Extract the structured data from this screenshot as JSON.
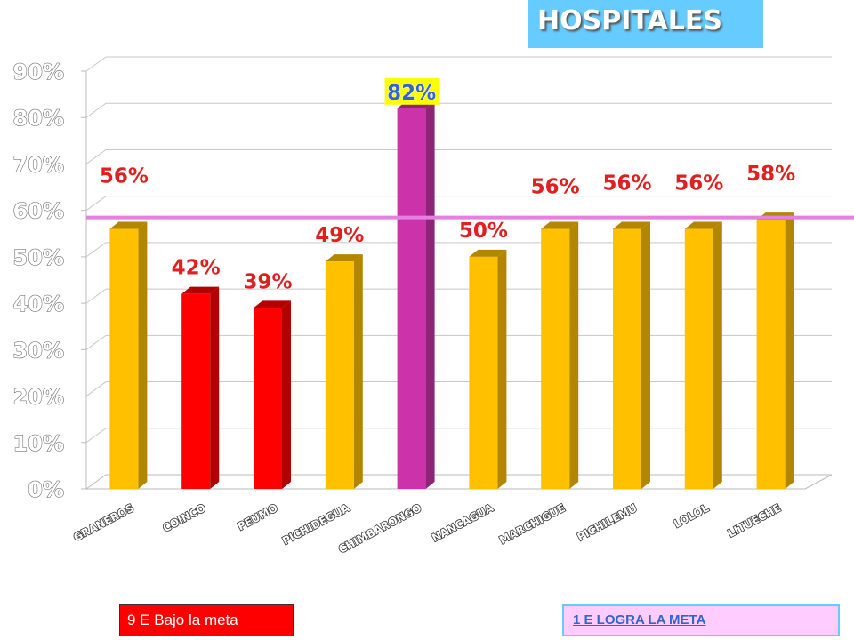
{
  "title": "HOSPITALES",
  "legend": {
    "below": "9 E Bajo la meta",
    "meets": "1 E  LOGRA LA META"
  },
  "colors": {
    "below_goal": "#ff0000",
    "near_goal": "#ffc000",
    "meets_goal": "#cc33aa",
    "goal_line": "#e57fe0",
    "title_bg": "#66ccff"
  },
  "chart_data": {
    "type": "bar",
    "categories": [
      "GRANEROS",
      "COINCO",
      "PEUMO",
      "PICHIDEGUA",
      "CHIMBARONGO",
      "NANCAGUA",
      "MARCHIGUE",
      "PICHILEMU",
      "LOLOL",
      "LITUECHE"
    ],
    "values": [
      56,
      42,
      39,
      49,
      82,
      50,
      56,
      56,
      56,
      58
    ],
    "data_labels": [
      "56%",
      "42%",
      "39%",
      "49%",
      "82%",
      "50%",
      "56%",
      "56%",
      "56%",
      "58%"
    ],
    "bar_status": [
      "near",
      "below",
      "below",
      "near",
      "meets",
      "near",
      "near",
      "near",
      "near",
      "near"
    ],
    "ylim": [
      0,
      90
    ],
    "yticks": [
      0,
      10,
      20,
      30,
      40,
      50,
      60,
      70,
      80,
      90
    ],
    "ytick_labels": [
      "0%",
      "10%",
      "20%",
      "30%",
      "40%",
      "50%",
      "60%",
      "70%",
      "80%",
      "90%"
    ],
    "goal_line": 60,
    "grid": true,
    "xlabel": "",
    "ylabel": ""
  }
}
